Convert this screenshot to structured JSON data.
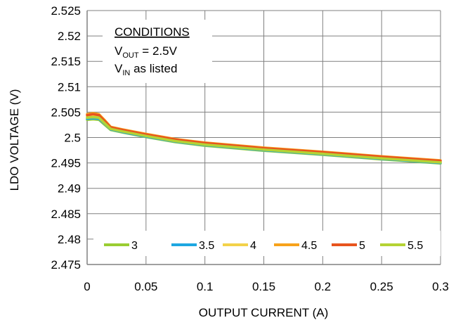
{
  "chart_data": {
    "type": "line",
    "title": "",
    "xlabel": "OUTPUT CURRENT (A)",
    "ylabel": "LDO VOLTAGE (V)",
    "xlim": [
      0,
      0.3
    ],
    "ylim": [
      2.475,
      2.525
    ],
    "xticks": [
      "0",
      "0.05",
      "0.1",
      "0.15",
      "0.2",
      "0.25",
      "0.3"
    ],
    "yticks": [
      "2.475",
      "2.48",
      "2.485",
      "2.49",
      "2.495",
      "2.5",
      "2.505",
      "2.51",
      "2.515",
      "2.52",
      "2.525"
    ],
    "grid": true,
    "legend_position": "bottom",
    "annotation": {
      "heading": "CONDITIONS",
      "line1_main": "V",
      "line1_sub": "OUT",
      "line1_rest": " = 2.5V",
      "line2_main": "V",
      "line2_sub": "IN",
      "line2_rest": " as listed"
    },
    "x": [
      0,
      0.005,
      0.01,
      0.015,
      0.02,
      0.03,
      0.05,
      0.075,
      0.1,
      0.15,
      0.2,
      0.25,
      0.3
    ],
    "series": [
      {
        "name": "3",
        "color": "#9ACD32",
        "values": [
          2.5035,
          2.5036,
          2.5035,
          2.5025,
          2.5015,
          2.501,
          2.5001,
          2.4991,
          2.4984,
          2.4974,
          2.4966,
          2.4957,
          2.4949
        ]
      },
      {
        "name": "3.5",
        "color": "#1EA7E1",
        "values": [
          2.5037,
          2.5038,
          2.5037,
          2.5027,
          2.5016,
          2.5011,
          2.5002,
          2.4992,
          2.4985,
          2.4975,
          2.4967,
          2.4958,
          2.495
        ]
      },
      {
        "name": "4",
        "color": "#F3D24A",
        "values": [
          2.5041,
          2.5043,
          2.5041,
          2.503,
          2.5018,
          2.5013,
          2.5004,
          2.4994,
          2.4987,
          2.4977,
          2.4969,
          2.496,
          2.4952
        ]
      },
      {
        "name": "4.5",
        "color": "#F7A21B",
        "values": [
          2.5046,
          2.5048,
          2.5046,
          2.5034,
          2.5021,
          2.5016,
          2.5007,
          2.4997,
          2.499,
          2.498,
          2.4972,
          2.4963,
          2.4955
        ]
      },
      {
        "name": "5",
        "color": "#E8541E",
        "values": [
          2.5044,
          2.5046,
          2.5044,
          2.5032,
          2.502,
          2.5015,
          2.5006,
          2.4996,
          2.4989,
          2.4979,
          2.4971,
          2.4962,
          2.4954
        ]
      },
      {
        "name": "5.5",
        "color": "#B5D334",
        "values": [
          2.5039,
          2.504,
          2.5039,
          2.5028,
          2.5017,
          2.5012,
          2.5003,
          2.4993,
          2.4986,
          2.4976,
          2.4968,
          2.4959,
          2.4951
        ]
      }
    ]
  }
}
